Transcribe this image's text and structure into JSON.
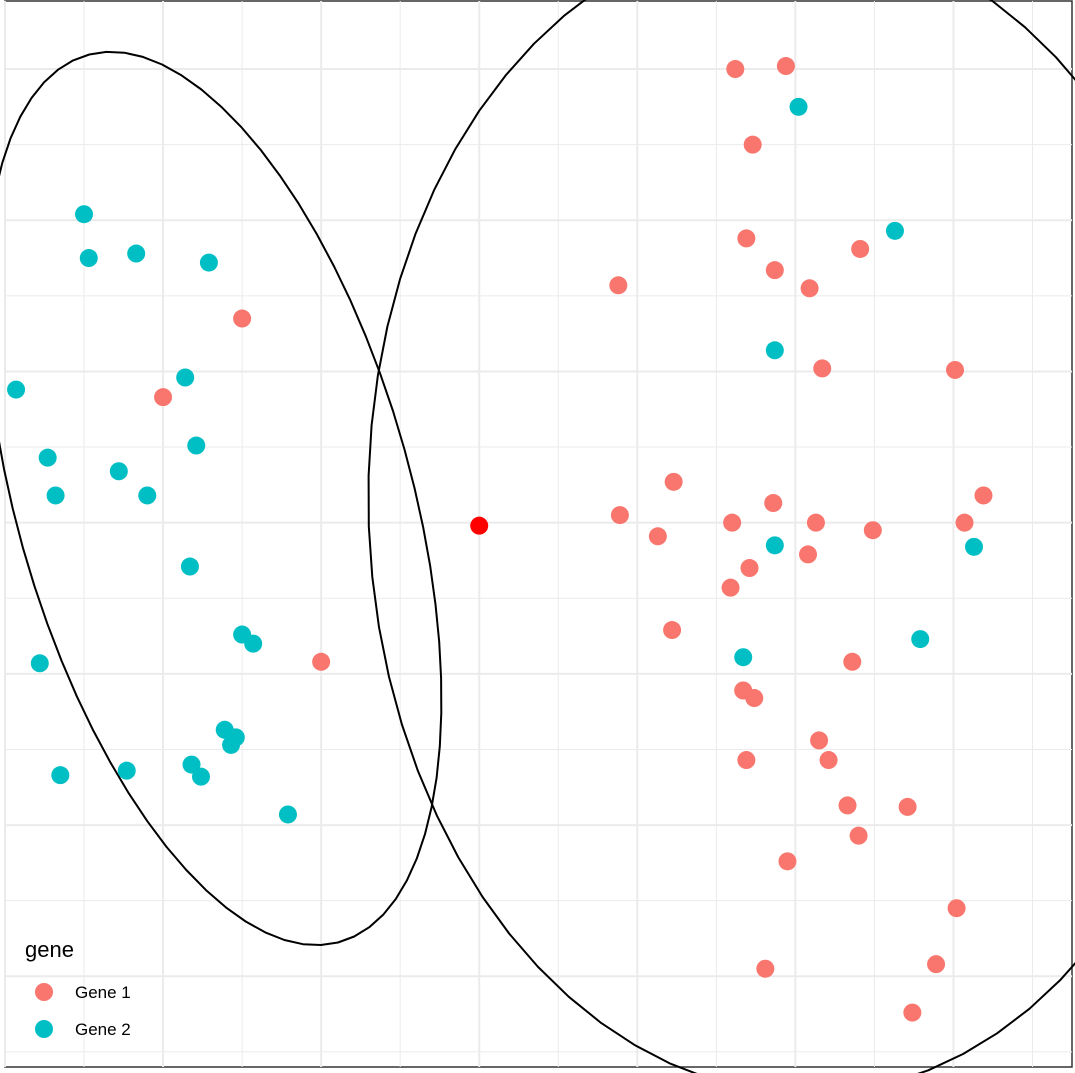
{
  "chart_data": {
    "type": "scatter",
    "title": "",
    "xlabel": "",
    "ylabel": "",
    "xlim": [
      -3.0,
      3.75
    ],
    "ylim": [
      -3.6,
      3.45
    ],
    "grid": true,
    "colors": {
      "Gene 1": "#F8766D",
      "Gene 2": "#00BFC4",
      "center": "#FF0000",
      "ellipse": "#000000",
      "grid": "#EBEBEB",
      "border": "#333333"
    },
    "legend": {
      "title": "gene",
      "position": "bottom-left",
      "entries": [
        "Gene 1",
        "Gene 2"
      ]
    },
    "series": [
      {
        "name": "Gene 1",
        "points": [
          [
            -1.5,
            1.35
          ],
          [
            -2.0,
            0.83
          ],
          [
            -1.0,
            -0.92
          ],
          [
            1.62,
            3.0
          ],
          [
            1.94,
            3.02
          ],
          [
            1.73,
            2.5
          ],
          [
            1.69,
            1.88
          ],
          [
            1.87,
            1.67
          ],
          [
            2.09,
            1.55
          ],
          [
            2.41,
            1.81
          ],
          [
            0.88,
            1.57
          ],
          [
            2.17,
            1.02
          ],
          [
            3.01,
            1.01
          ],
          [
            1.23,
            0.27
          ],
          [
            3.07,
            -0.0
          ],
          [
            3.19,
            0.18
          ],
          [
            1.86,
            0.13
          ],
          [
            2.13,
            -0.0
          ],
          [
            0.89,
            0.05
          ],
          [
            1.13,
            -0.09
          ],
          [
            1.6,
            -0.0
          ],
          [
            2.49,
            -0.05
          ],
          [
            2.08,
            -0.21
          ],
          [
            1.71,
            -0.3
          ],
          [
            1.59,
            -0.43
          ],
          [
            1.22,
            -0.71
          ],
          [
            2.36,
            -0.92
          ],
          [
            1.67,
            -1.11
          ],
          [
            1.74,
            -1.16
          ],
          [
            2.15,
            -1.44
          ],
          [
            2.21,
            -1.57
          ],
          [
            1.69,
            -1.57
          ],
          [
            2.33,
            -1.87
          ],
          [
            2.71,
            -1.88
          ],
          [
            2.4,
            -2.07
          ],
          [
            1.95,
            -2.24
          ],
          [
            3.02,
            -2.55
          ],
          [
            2.89,
            -2.92
          ],
          [
            1.81,
            -2.95
          ],
          [
            2.74,
            -3.24
          ]
        ]
      },
      {
        "name": "Gene 2",
        "points": [
          [
            -2.5,
            2.04
          ],
          [
            -2.47,
            1.75
          ],
          [
            -2.17,
            1.78
          ],
          [
            -1.71,
            1.72
          ],
          [
            -2.93,
            0.88
          ],
          [
            -1.86,
            0.96
          ],
          [
            -2.73,
            0.43
          ],
          [
            -2.28,
            0.34
          ],
          [
            -1.79,
            0.51
          ],
          [
            -2.68,
            0.18
          ],
          [
            -2.1,
            0.18
          ],
          [
            -1.83,
            -0.29
          ],
          [
            -1.5,
            -0.74
          ],
          [
            -1.43,
            -0.8
          ],
          [
            -2.78,
            -0.93
          ],
          [
            -1.61,
            -1.37
          ],
          [
            -1.54,
            -1.42
          ],
          [
            -1.57,
            -1.47
          ],
          [
            -2.65,
            -1.67
          ],
          [
            -2.23,
            -1.64
          ],
          [
            -1.82,
            -1.6
          ],
          [
            -1.76,
            -1.68
          ],
          [
            -1.21,
            -1.93
          ],
          [
            2.02,
            2.75
          ],
          [
            2.63,
            1.93
          ],
          [
            1.87,
            1.14
          ],
          [
            1.87,
            -0.15
          ],
          [
            3.13,
            -0.16
          ],
          [
            1.67,
            -0.89
          ],
          [
            2.79,
            -0.77
          ]
        ]
      }
    ],
    "center_point": [
      0.0,
      -0.02
    ],
    "ellipses": [
      {
        "cx": -1.68,
        "cy": 0.16,
        "rx": 1.25,
        "ry": 3.04,
        "angle": 15
      },
      {
        "cx": 2.01,
        "cy": 0.07,
        "rx": 2.71,
        "ry": 3.85,
        "angle": 2
      }
    ]
  }
}
